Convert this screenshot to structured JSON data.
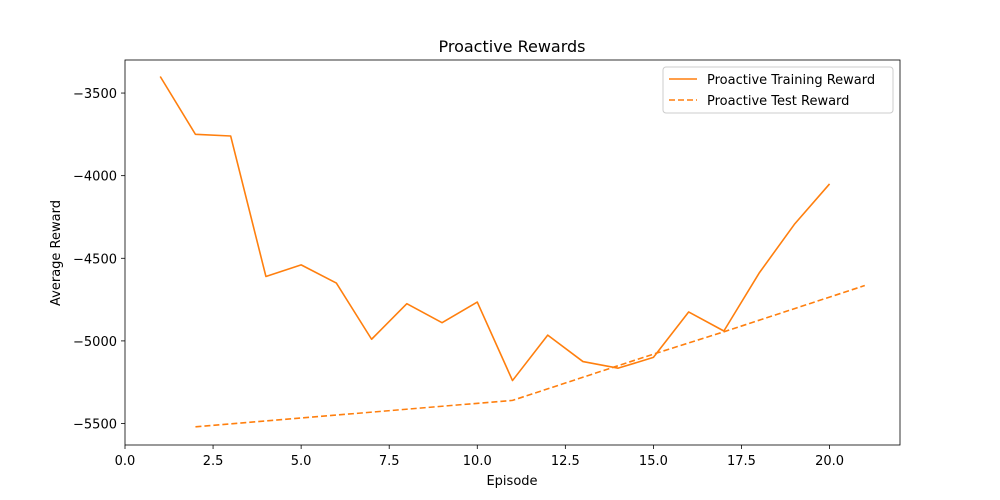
{
  "chart_data": {
    "type": "line",
    "title": "Proactive Rewards",
    "xlabel": "Episode",
    "ylabel": "Average Reward",
    "xlim": [
      0.0,
      22.0
    ],
    "ylim": [
      -5630,
      -3300
    ],
    "xticks": [
      0.0,
      2.5,
      5.0,
      7.5,
      10.0,
      12.5,
      15.0,
      17.5,
      20.0
    ],
    "xtick_labels": [
      "0.0",
      "2.5",
      "5.0",
      "7.5",
      "10.0",
      "12.5",
      "15.0",
      "17.5",
      "20.0"
    ],
    "yticks": [
      -3500,
      -4000,
      -4500,
      -5000,
      -5500
    ],
    "ytick_labels": [
      "−3500",
      "−4000",
      "−4500",
      "−5000",
      "−5500"
    ],
    "grid": false,
    "legend_position": "top-right",
    "series": [
      {
        "name": "Proactive Training Reward",
        "style": "solid",
        "color": "#ff7f0e",
        "x": [
          1,
          2,
          3,
          4,
          5,
          6,
          7,
          8,
          9,
          10,
          11,
          12,
          13,
          14,
          15,
          16,
          17,
          18,
          19,
          20
        ],
        "values": [
          -3400,
          -3750,
          -3760,
          -4610,
          -4540,
          -4650,
          -4990,
          -4775,
          -4890,
          -4765,
          -5240,
          -4965,
          -5125,
          -5165,
          -5100,
          -4825,
          -4940,
          -4590,
          -4295,
          -4050
        ]
      },
      {
        "name": "Proactive Test Reward",
        "style": "dashed",
        "color": "#ff7f0e",
        "x": [
          2,
          11,
          14,
          15,
          17,
          21
        ],
        "values": [
          -5520,
          -5360,
          -5150,
          -5080,
          -4945,
          -4665
        ]
      }
    ]
  }
}
